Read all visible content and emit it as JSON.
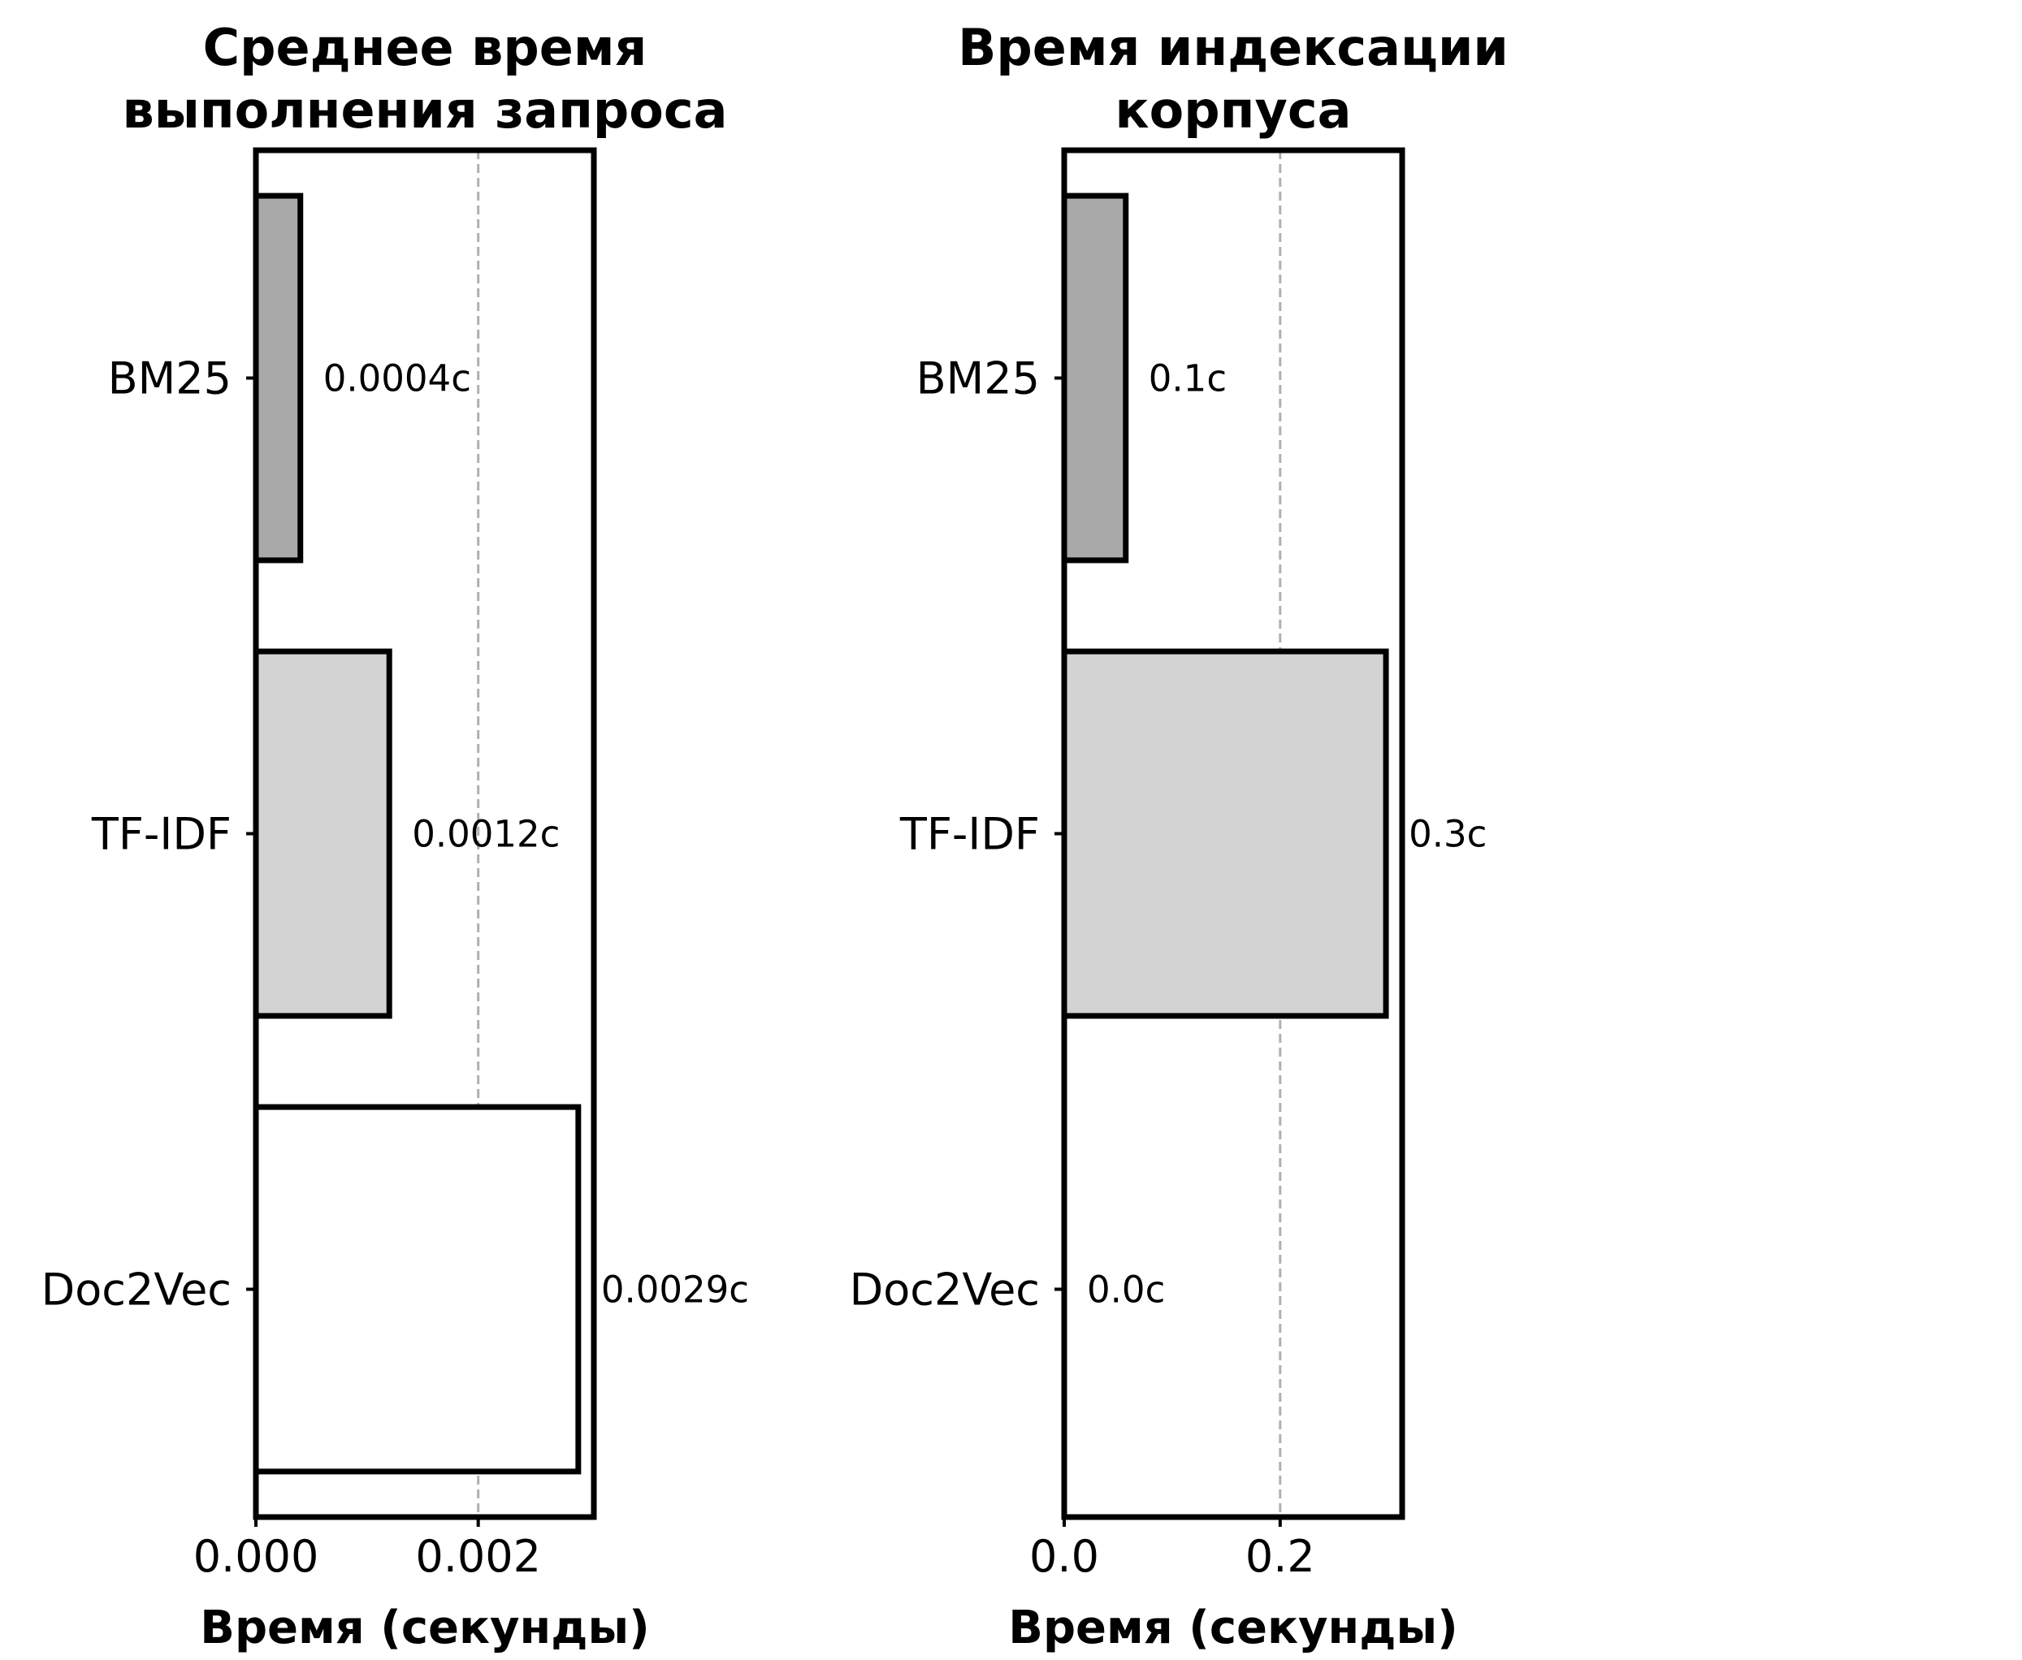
{
  "chart_data": [
    {
      "type": "bar",
      "orientation": "horizontal",
      "title": [
        "Среднее время",
        "выполнения запроса"
      ],
      "xlabel": "Время (секунды)",
      "ylabel": "",
      "categories": [
        "BM25",
        "TF-IDF",
        "Doc2Vec"
      ],
      "values": [
        0.0004,
        0.0012,
        0.0029
      ],
      "data_labels": [
        "0.0004с",
        "0.0012с",
        "0.0029с"
      ],
      "bar_colors": [
        "#a9a9a9",
        "#d3d3d3",
        "#ffffff"
      ],
      "xlim": [
        0,
        0.00304
      ],
      "xticks": [
        0.0,
        0.002
      ],
      "xtick_labels": [
        "0.000",
        "0.002"
      ],
      "grid": "x, dashed",
      "legend": "none"
    },
    {
      "type": "bar",
      "orientation": "horizontal",
      "title": [
        "Время индексации",
        "корпуса"
      ],
      "xlabel": "Время (секунды)",
      "ylabel": "",
      "categories": [
        "BM25",
        "TF-IDF",
        "Doc2Vec"
      ],
      "values": [
        0.057,
        0.298,
        0.0
      ],
      "data_labels": [
        "0.1с",
        "0.3с",
        "0.0с"
      ],
      "bar_colors": [
        "#a9a9a9",
        "#d3d3d3",
        "#ffffff"
      ],
      "xlim": [
        0,
        0.313
      ],
      "xticks": [
        0.0,
        0.2
      ],
      "xtick_labels": [
        "0.0",
        "0.2"
      ],
      "grid": "x, dashed",
      "legend": "none"
    }
  ]
}
